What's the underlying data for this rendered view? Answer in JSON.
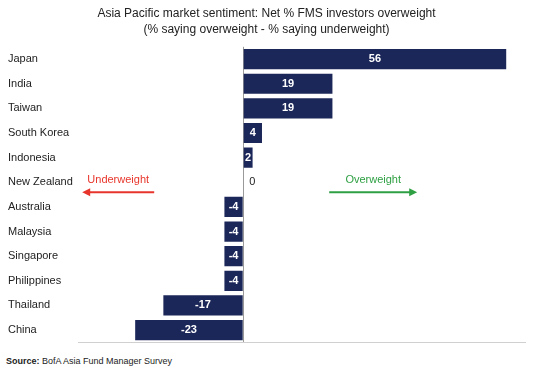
{
  "chart_data": {
    "type": "bar",
    "title": "Asia Pacific market sentiment: Net % FMS investors overweight",
    "subtitle": "(% saying overweight - % saying underweight)",
    "categories": [
      "Japan",
      "India",
      "Taiwan",
      "South Korea",
      "Indonesia",
      "New Zealand",
      "Australia",
      "Malaysia",
      "Singapore",
      "Philippines",
      "Thailand",
      "China"
    ],
    "values": [
      56,
      19,
      19,
      4,
      2,
      0,
      -4,
      -4,
      -4,
      -4,
      -17,
      -23
    ],
    "color": "#1c2759",
    "orientation": "horizontal",
    "xlim": [
      -35,
      60
    ],
    "xticks": [
      0
    ],
    "grid": true,
    "tick_labels": "y",
    "data_labels": true,
    "annotations": [
      "Underweight",
      "Overweight"
    ],
    "source": "Source: BofA Asia Fund Manager Survey"
  }
}
